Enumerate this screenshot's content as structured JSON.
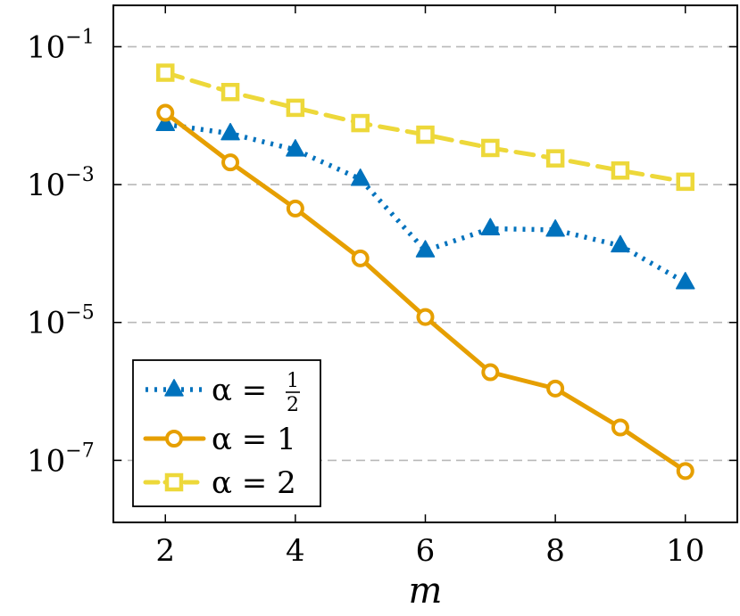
{
  "chart_data": {
    "type": "line",
    "xlabel": "m",
    "ylabel": "",
    "title": "",
    "xlim": [
      1.2,
      10.8
    ],
    "ylim_log10": [
      -7.9,
      -0.4
    ],
    "yscale": "log",
    "grid": "horizontal dashed at major y ticks",
    "legend_position": "bottom-left",
    "x_ticks": [
      2,
      4,
      6,
      8,
      10
    ],
    "x_tick_labels": [
      "2",
      "4",
      "6",
      "8",
      "10"
    ],
    "y_ticks_log10": [
      -1,
      -3,
      -5,
      -7
    ],
    "y_tick_labels": [
      {
        "base": "10",
        "exp": "−1"
      },
      {
        "base": "10",
        "exp": "−3"
      },
      {
        "base": "10",
        "exp": "−5"
      },
      {
        "base": "10",
        "exp": "−7"
      }
    ],
    "series": [
      {
        "name": "α = 1/2",
        "legend_prefix": "α =",
        "legend_num": "1",
        "legend_den": "2",
        "color": "#0072BD",
        "marker": "triangle",
        "dash": "dotted",
        "x": [
          2,
          3,
          4,
          5,
          6,
          7,
          8,
          9,
          10
        ],
        "y": [
          0.0075,
          0.0055,
          0.0032,
          0.0012,
          0.00011,
          0.00023,
          0.00022,
          0.00013,
          3.8e-05
        ]
      },
      {
        "name": "α = 1",
        "legend_prefix": "α = 1",
        "color": "#E69F00",
        "marker": "circle",
        "dash": "solid",
        "x": [
          2,
          3,
          4,
          5,
          6,
          7,
          8,
          9,
          10
        ],
        "y": [
          0.011,
          0.0021,
          0.00045,
          8.5e-05,
          1.2e-05,
          1.9e-06,
          1.1e-06,
          3e-07,
          7e-08
        ]
      },
      {
        "name": "α = 2",
        "legend_prefix": "α = 2",
        "color": "#EDD83A",
        "marker": "square",
        "dash": "dashed",
        "x": [
          2,
          3,
          4,
          5,
          6,
          7,
          8,
          9,
          10
        ],
        "y": [
          0.042,
          0.022,
          0.013,
          0.0078,
          0.0053,
          0.0034,
          0.0024,
          0.0016,
          0.0011
        ]
      }
    ]
  }
}
